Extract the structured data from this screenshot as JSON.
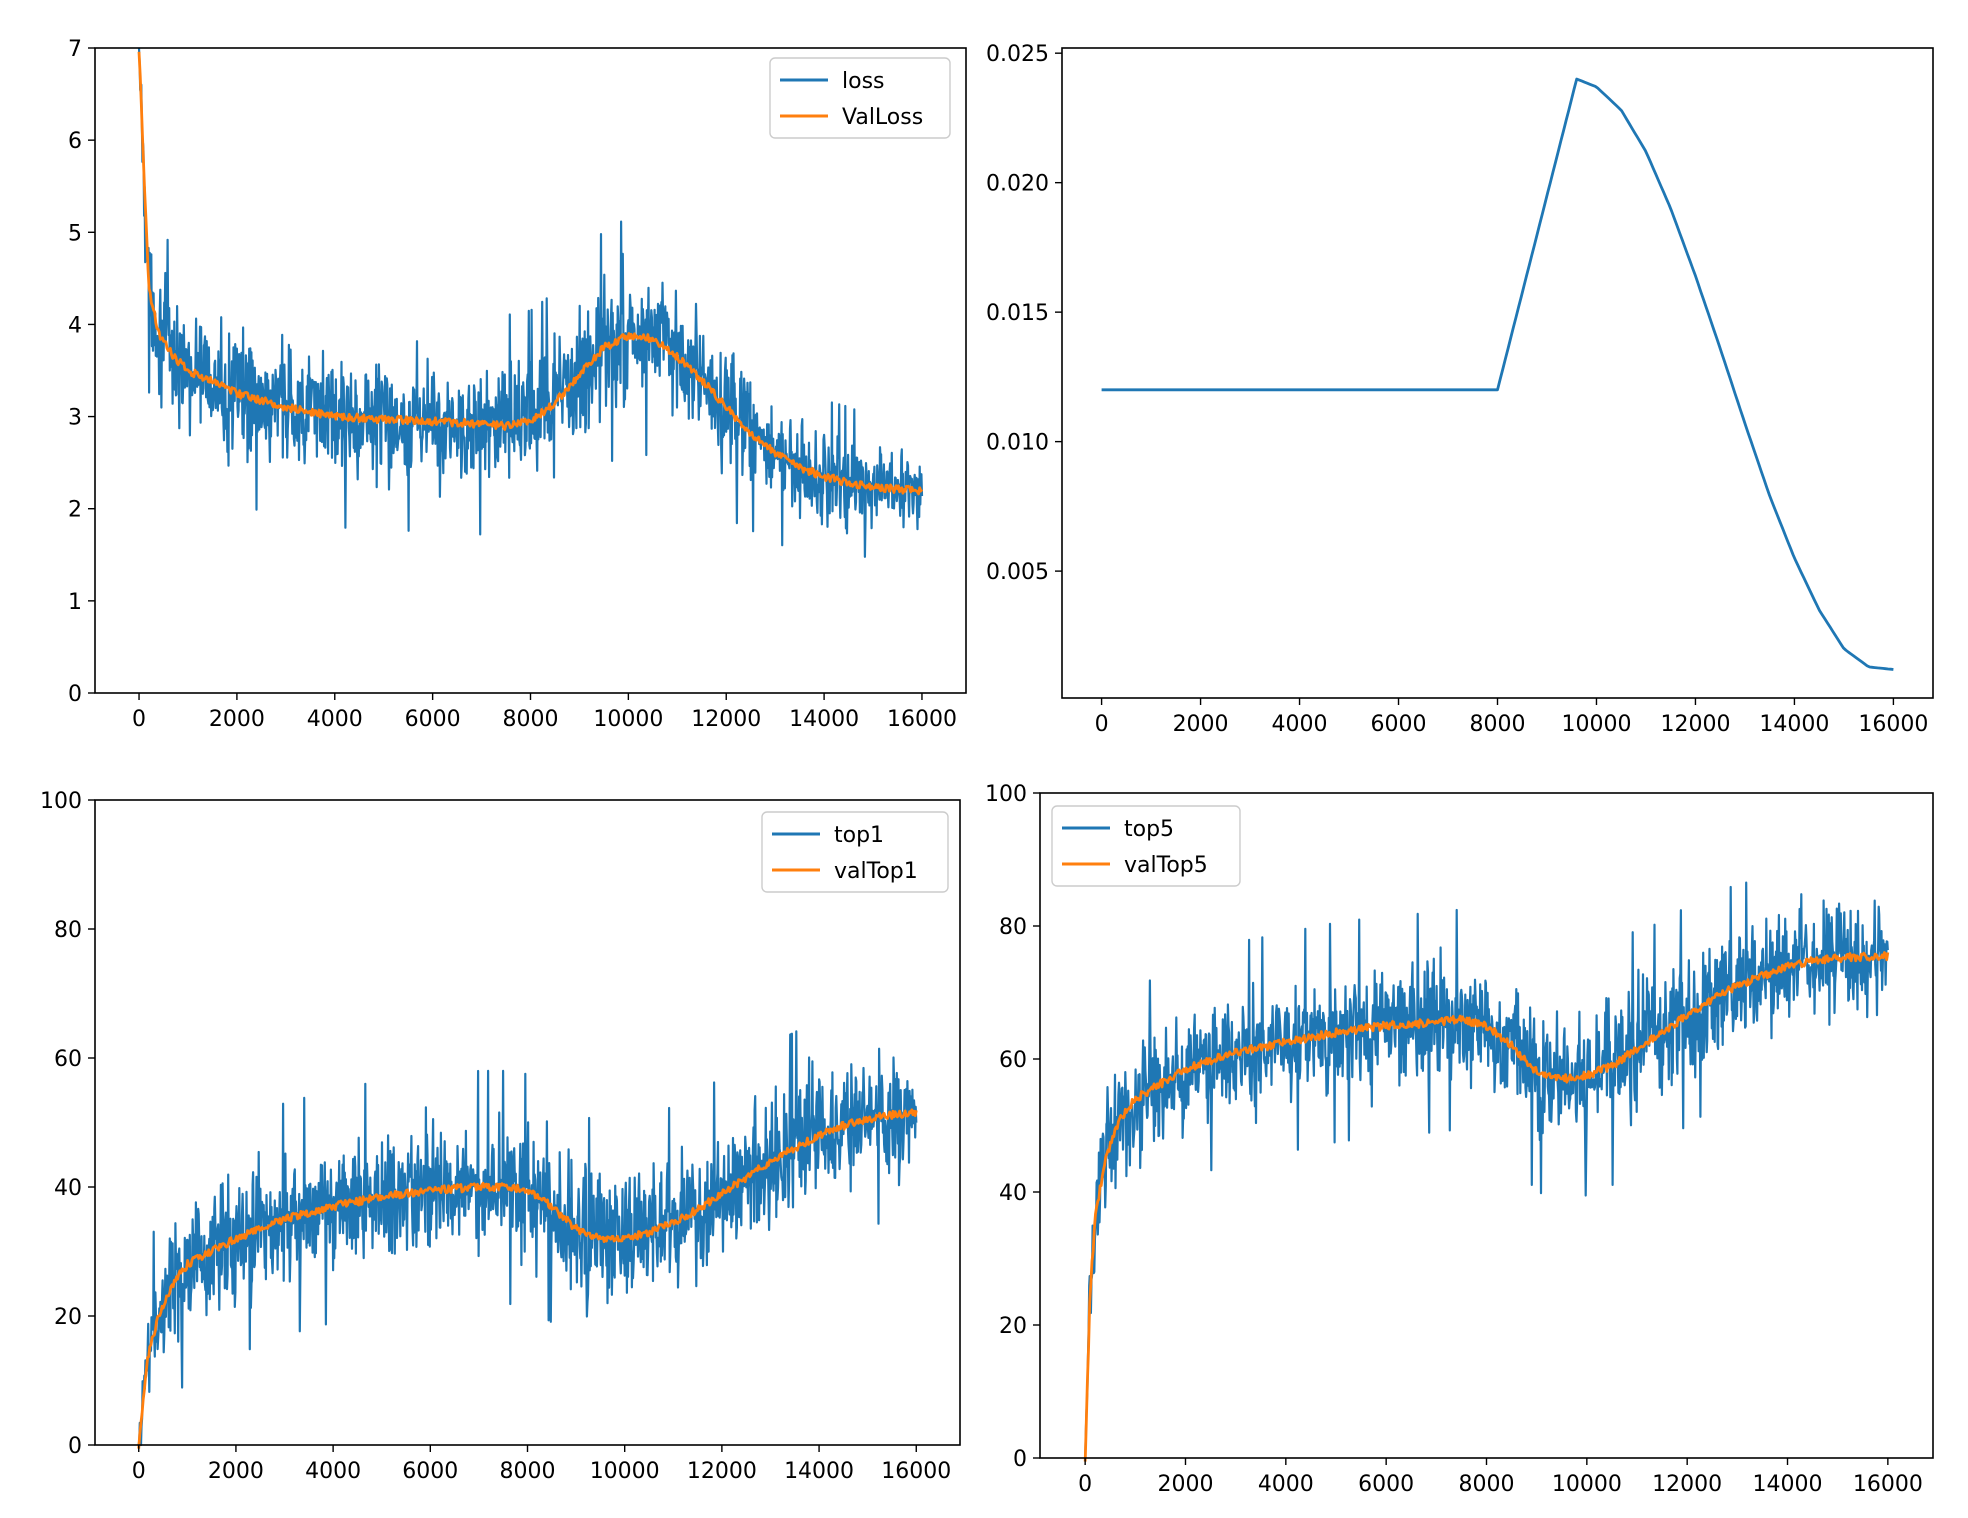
{
  "chart_data": [
    {
      "type": "line",
      "title": "",
      "xlabel": "",
      "ylabel": "",
      "xlim": [
        -900,
        16900
      ],
      "ylim": [
        0,
        7
      ],
      "xticks": [
        0,
        2000,
        4000,
        6000,
        8000,
        10000,
        12000,
        14000,
        16000
      ],
      "yticks": [
        0,
        1,
        2,
        3,
        4,
        5,
        6,
        7
      ],
      "tick_labels_x": [
        "0",
        "2000",
        "4000",
        "6000",
        "8000",
        "10000",
        "12000",
        "14000",
        "16000"
      ],
      "tick_labels_y": [
        "0",
        "1",
        "2",
        "3",
        "4",
        "5",
        "6",
        "7"
      ],
      "legend": "top-right",
      "grid": false,
      "series": [
        {
          "name": "loss",
          "color": "#1f77b4",
          "style": "noisy band",
          "x": [
            0,
            100,
            200,
            400,
            700,
            1000,
            2000,
            3000,
            4000,
            5000,
            6000,
            7000,
            7500,
            8000,
            8500,
            9000,
            9500,
            10000,
            10500,
            11000,
            11500,
            12000,
            12500,
            13000,
            13500,
            14000,
            14500,
            15000,
            15500,
            16000
          ],
          "y": [
            7.0,
            5.6,
            4.4,
            3.9,
            3.65,
            3.5,
            3.25,
            3.1,
            3.0,
            2.97,
            2.95,
            2.92,
            2.9,
            2.95,
            3.15,
            3.45,
            3.75,
            3.88,
            3.85,
            3.65,
            3.4,
            3.1,
            2.82,
            2.6,
            2.45,
            2.35,
            2.28,
            2.24,
            2.21,
            2.2
          ],
          "band_halfwidth": [
            0.1,
            0.7,
            0.75,
            0.75,
            0.8,
            0.8,
            0.8,
            0.8,
            0.8,
            0.8,
            0.8,
            0.8,
            0.8,
            0.8,
            0.8,
            0.8,
            0.85,
            0.85,
            0.85,
            0.85,
            0.8,
            0.8,
            0.7,
            0.65,
            0.6,
            0.55,
            0.55,
            0.5,
            0.5,
            0.5
          ]
        },
        {
          "name": "ValLoss",
          "color": "#ff7f0e",
          "x": [
            0,
            100,
            200,
            400,
            700,
            1000,
            2000,
            3000,
            4000,
            5000,
            6000,
            7000,
            7500,
            8000,
            8500,
            9000,
            9500,
            10000,
            10500,
            11000,
            11500,
            12000,
            12500,
            13000,
            13500,
            14000,
            14500,
            15000,
            15500,
            16000
          ],
          "y": [
            7.0,
            5.6,
            4.4,
            3.9,
            3.65,
            3.5,
            3.25,
            3.1,
            3.0,
            2.97,
            2.95,
            2.92,
            2.9,
            2.95,
            3.15,
            3.45,
            3.75,
            3.88,
            3.85,
            3.65,
            3.4,
            3.1,
            2.82,
            2.6,
            2.45,
            2.35,
            2.28,
            2.24,
            2.21,
            2.2
          ]
        }
      ]
    },
    {
      "type": "line",
      "title": "",
      "xlabel": "",
      "ylabel": "",
      "xlim": [
        -800,
        16800
      ],
      "ylim": [
        0.0001,
        0.0252
      ],
      "xticks": [
        0,
        2000,
        4000,
        6000,
        8000,
        10000,
        12000,
        14000,
        16000
      ],
      "yticks": [
        0.005,
        0.01,
        0.015,
        0.02,
        0.025
      ],
      "tick_labels_x": [
        "0",
        "2000",
        "4000",
        "6000",
        "8000",
        "10000",
        "12000",
        "14000",
        "16000"
      ],
      "tick_labels_y": [
        "0.005",
        "0.010",
        "0.015",
        "0.020",
        "0.025"
      ],
      "grid": false,
      "series": [
        {
          "color": "#1f77b4",
          "x": [
            0,
            8000,
            9600,
            10000,
            10500,
            11000,
            11500,
            12000,
            12500,
            13000,
            13500,
            14000,
            14500,
            15000,
            15500,
            16000
          ],
          "y": [
            0.012,
            0.012,
            0.024,
            0.0237,
            0.0228,
            0.0212,
            0.019,
            0.0164,
            0.0136,
            0.0107,
            0.0079,
            0.0055,
            0.0035,
            0.002,
            0.0013,
            0.0012
          ]
        }
      ]
    },
    {
      "type": "line",
      "title": "",
      "xlabel": "",
      "ylabel": "",
      "xlim": [
        -900,
        16900
      ],
      "ylim": [
        0,
        100
      ],
      "xticks": [
        0,
        2000,
        4000,
        6000,
        8000,
        10000,
        12000,
        14000,
        16000
      ],
      "yticks": [
        0,
        20,
        40,
        60,
        80,
        100
      ],
      "tick_labels_x": [
        "0",
        "2000",
        "4000",
        "6000",
        "8000",
        "10000",
        "12000",
        "14000",
        "16000"
      ],
      "tick_labels_y": [
        "0",
        "20",
        "40",
        "60",
        "80",
        "100"
      ],
      "legend": "top-right",
      "grid": false,
      "series": [
        {
          "name": "top1",
          "color": "#1f77b4",
          "style": "noisy band",
          "x": [
            0,
            100,
            200,
            400,
            700,
            1000,
            2000,
            3000,
            4000,
            5000,
            6000,
            7000,
            7500,
            8000,
            8500,
            9000,
            9500,
            10000,
            10500,
            11000,
            11500,
            12000,
            12500,
            13000,
            13500,
            14000,
            14500,
            15000,
            15500,
            16000
          ],
          "y": [
            0,
            8,
            14,
            20,
            25,
            28,
            32,
            35,
            37,
            38.5,
            39.5,
            40,
            40,
            39.5,
            37,
            33.5,
            32,
            32,
            33,
            34.5,
            36.5,
            39,
            41.5,
            44,
            46,
            48,
            49.5,
            50.5,
            51.2,
            51.5
          ],
          "band_halfwidth": [
            0.5,
            8,
            10,
            11,
            12,
            12,
            12,
            12,
            12,
            12,
            12,
            12,
            12,
            12,
            12,
            12,
            12,
            12,
            12,
            12,
            12,
            12,
            12,
            12,
            12,
            12,
            11,
            11,
            11,
            11
          ]
        },
        {
          "name": "valTop1",
          "color": "#ff7f0e",
          "x": [
            0,
            100,
            200,
            400,
            700,
            1000,
            2000,
            3000,
            4000,
            5000,
            6000,
            7000,
            7500,
            8000,
            8500,
            9000,
            9500,
            10000,
            10500,
            11000,
            11500,
            12000,
            12500,
            13000,
            13500,
            14000,
            14500,
            15000,
            15500,
            16000
          ],
          "y": [
            0,
            8,
            14,
            20,
            25,
            28,
            32,
            35,
            37,
            38.5,
            39.5,
            40,
            40,
            39.5,
            37,
            33.5,
            32,
            32,
            33,
            34.5,
            36.5,
            39,
            41.5,
            44,
            46,
            48,
            49.5,
            50.5,
            51.2,
            51.5
          ]
        }
      ]
    },
    {
      "type": "line",
      "title": "",
      "xlabel": "",
      "ylabel": "",
      "xlim": [
        -900,
        16900
      ],
      "ylim": [
        0,
        100
      ],
      "xticks": [
        0,
        2000,
        4000,
        6000,
        8000,
        10000,
        12000,
        14000,
        16000
      ],
      "yticks": [
        0,
        20,
        40,
        60,
        80,
        100
      ],
      "tick_labels_x": [
        "0",
        "2000",
        "4000",
        "6000",
        "8000",
        "10000",
        "12000",
        "14000",
        "16000"
      ],
      "tick_labels_y": [
        "0",
        "20",
        "40",
        "60",
        "80",
        "100"
      ],
      "legend": "top-left",
      "grid": false,
      "series": [
        {
          "name": "top5",
          "color": "#1f77b4",
          "style": "noisy band",
          "x": [
            0,
            100,
            200,
            400,
            700,
            1000,
            2000,
            3000,
            4000,
            5000,
            6000,
            7000,
            7500,
            8000,
            8500,
            9000,
            9500,
            10000,
            10500,
            11000,
            11500,
            12000,
            12500,
            13000,
            13500,
            14000,
            14500,
            15000,
            15500,
            16000
          ],
          "y": [
            0,
            25,
            36,
            45,
            51,
            54,
            58.5,
            61,
            62.5,
            64,
            65,
            65.5,
            66,
            65,
            62,
            58,
            57,
            57.5,
            59,
            61.5,
            64,
            66.5,
            69,
            71,
            72.5,
            74,
            74.8,
            75.2,
            75.4,
            75.5
          ],
          "band_halfwidth": [
            0.5,
            10,
            11,
            11,
            11,
            11,
            11,
            11,
            11,
            11,
            11,
            11,
            11,
            11,
            11,
            12,
            12,
            12,
            12,
            12,
            11,
            11,
            11,
            10,
            10,
            10,
            10,
            10,
            10,
            10
          ]
        },
        {
          "name": "valTop5",
          "color": "#ff7f0e",
          "x": [
            0,
            100,
            200,
            400,
            700,
            1000,
            2000,
            3000,
            4000,
            5000,
            6000,
            7000,
            7500,
            8000,
            8500,
            9000,
            9500,
            10000,
            10500,
            11000,
            11500,
            12000,
            12500,
            13000,
            13500,
            14000,
            14500,
            15000,
            15500,
            16000
          ],
          "y": [
            0,
            25,
            36,
            45,
            51,
            54,
            58.5,
            61,
            62.5,
            64,
            65,
            65.5,
            66,
            65,
            62,
            58,
            57,
            57.5,
            59,
            61.5,
            64,
            66.5,
            69,
            71,
            72.5,
            74,
            74.8,
            75.2,
            75.4,
            75.5
          ]
        }
      ]
    }
  ]
}
